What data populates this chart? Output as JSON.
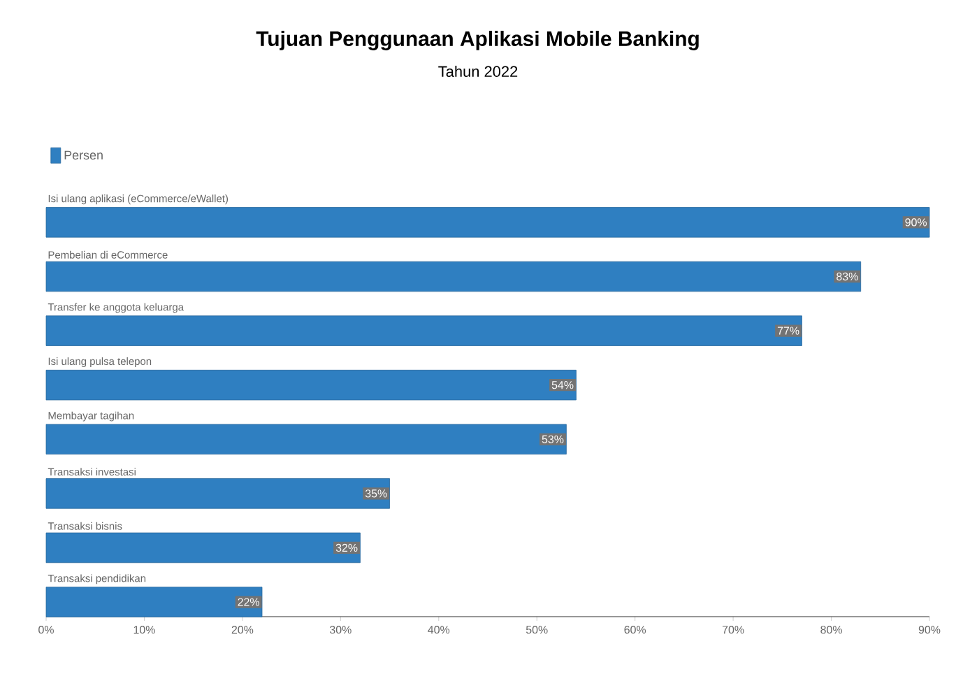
{
  "chart_data": {
    "type": "bar",
    "orientation": "horizontal",
    "title": "Tujuan Penggunaan Aplikasi Mobile Banking",
    "subtitle": "Tahun 2022",
    "categories": [
      "Isi ulang aplikasi (eCommerce/eWallet)",
      "Pembelian di eCommerce",
      "Transfer ke anggota keluarga",
      "Isi ulang pulsa telepon",
      "Membayar tagihan",
      "Transaksi investasi",
      "Transaksi bisnis",
      "Transaksi pendidikan"
    ],
    "series": [
      {
        "name": "Persen",
        "color": "#2f7fc1",
        "values": [
          90,
          83,
          77,
          54,
          53,
          35,
          32,
          22
        ],
        "value_labels": [
          "90%",
          "83%",
          "77%",
          "54%",
          "53%",
          "35%",
          "32%",
          "22%"
        ]
      }
    ],
    "xlim": [
      0,
      90
    ],
    "xticks": [
      {
        "value": 0,
        "label": "0%"
      },
      {
        "value": 10,
        "label": "10%"
      },
      {
        "value": 20,
        "label": "20%"
      },
      {
        "value": 30,
        "label": "30%"
      },
      {
        "value": 40,
        "label": "40%"
      },
      {
        "value": 50,
        "label": "50%"
      },
      {
        "value": 60,
        "label": "60%"
      },
      {
        "value": 70,
        "label": "70%"
      },
      {
        "value": 80,
        "label": "80%"
      },
      {
        "value": 90,
        "label": "90%"
      }
    ],
    "legend": "top left"
  }
}
